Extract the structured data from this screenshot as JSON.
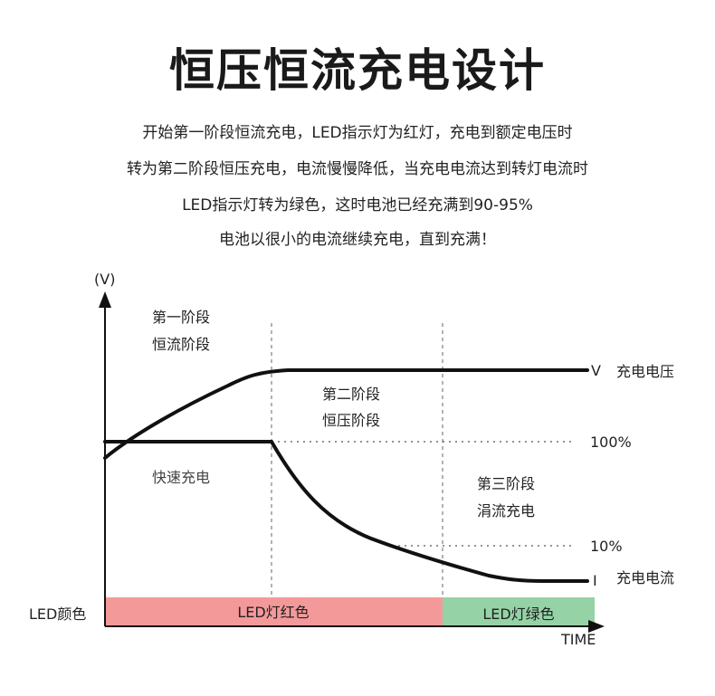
{
  "header": {
    "title": "恒压恒流充电设计",
    "lines": [
      "开始第一阶段恒流充电，LED指示灯为红灯，充电到额定电压时",
      "转为第二阶段恒压充电，电流慢慢降低，当充电电流达到转灯电流时",
      "LED指示灯转为绿色，这时电池已经充满到90-95%",
      "电池以很小的电流继续充电，直到充满！"
    ]
  },
  "diagram": {
    "y_axis_label": "(V)",
    "x_axis_label": "TIME",
    "stage1": [
      "第一阶段",
      "恒流阶段"
    ],
    "stage2": [
      "第二阶段",
      "恒压阶段"
    ],
    "stage3": [
      "第三阶段",
      "涓流充电"
    ],
    "fast_charge": "快速充电",
    "voltage_symbol": "V",
    "voltage_label": "充电电压",
    "current_symbol": "I",
    "current_label": "充电电流",
    "pct_100": "100%",
    "pct_10": "10%",
    "led_color_label": "LED颜色",
    "led_red": "LED灯红色",
    "led_green": "LED灯绿色",
    "colors": {
      "red_bar": "#f4999a",
      "green_bar": "#95d3a6",
      "line": "#111111"
    }
  }
}
